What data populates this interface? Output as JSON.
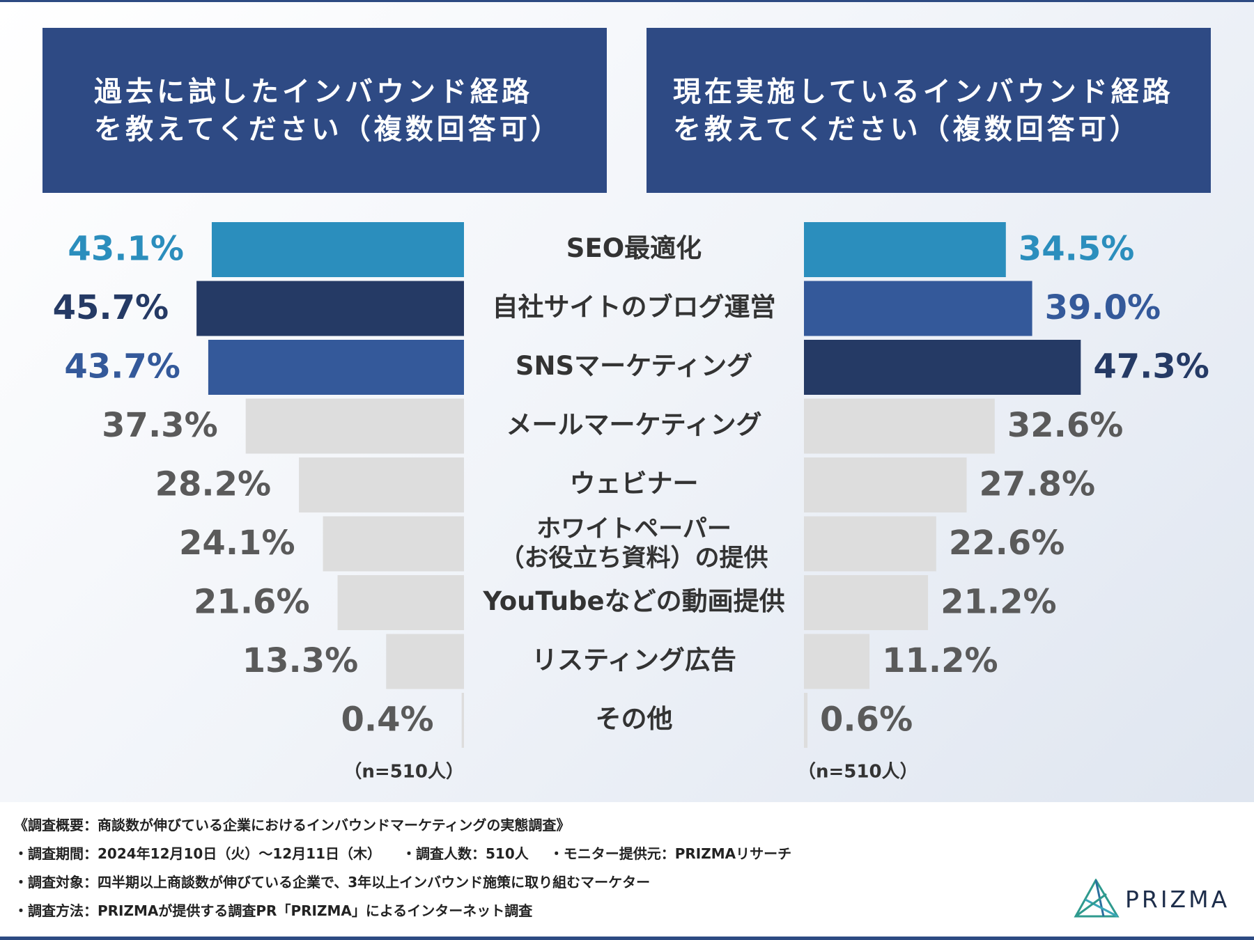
{
  "titles": {
    "left": "過去に試したインバウンド経路\nを教えてください（複数回答可）",
    "right": "現在実施しているインバウンド経路\nを教えてください（複数回答可）"
  },
  "colors": {
    "bright_blue": "#2b8ebd",
    "dark_navy": "#253a65",
    "mid_blue": "#34599a",
    "gray_bar": "#dddddd",
    "gray_text": "#5a5a5a",
    "label_text": "#333333"
  },
  "chart_data": {
    "type": "bar",
    "orientation": "horizontal-butterfly",
    "categories": [
      "SEO最適化",
      "自社サイトのブログ運営",
      "SNSマーケティング",
      "メールマーケティング",
      "ウェビナー",
      "ホワイトペーパー\n（お役立ち資料）の提供",
      "YouTubeなどの動画提供",
      "リスティング広告",
      "その他"
    ],
    "series": [
      {
        "values": [
          43.1,
          45.7,
          43.7,
          37.3,
          28.2,
          24.1,
          21.6,
          13.3,
          0.4
        ],
        "labels": [
          "43.1%",
          "45.7%",
          "43.7%",
          "37.3%",
          "28.2%",
          "24.1%",
          "21.6%",
          "13.3%",
          "0.4%"
        ],
        "highlight": [
          "bright_blue",
          "dark_navy",
          "mid_blue",
          null,
          null,
          null,
          null,
          null,
          null
        ],
        "n_label": "（n=510人）"
      },
      {
        "values": [
          34.5,
          39.0,
          47.3,
          32.6,
          27.8,
          22.6,
          21.2,
          11.2,
          0.6
        ],
        "labels": [
          "34.5%",
          "39.0%",
          "47.3%",
          "32.6%",
          "27.8%",
          "22.6%",
          "21.2%",
          "11.2%",
          "0.6%"
        ],
        "highlight": [
          "bright_blue",
          "mid_blue",
          "dark_navy",
          null,
          null,
          null,
          null,
          null,
          null
        ],
        "n_label": "（n=510人）"
      }
    ],
    "xlim": [
      0,
      50
    ]
  },
  "footer": {
    "summary": "《調査概要：商談数が伸びている企業におけるインバウンドマーケティングの実態調査》",
    "period": "・調査期間：2024年12月10日（火）〜12月11日（木）",
    "respondents": "・調査人数：510人",
    "provider": "・モニター提供元：PRIZMAリサーチ",
    "target": "・調査対象：四半期以上商談数が伸びている企業で、3年以上インバウンド施策に取り組むマーケター",
    "method": "・調査方法：PRIZMAが提供する調査PR「PRIZMA」によるインターネット調査"
  },
  "logo": {
    "text": "PRIZMA",
    "icon": "prism-triangle-icon"
  }
}
